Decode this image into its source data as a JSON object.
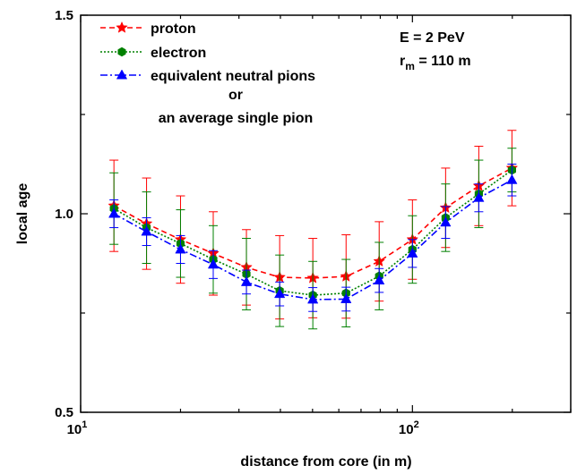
{
  "chart_data": {
    "type": "line",
    "xlabel": "distance from core (in m)",
    "ylabel": "local age",
    "xscale": "log",
    "xlim": [
      10,
      300
    ],
    "ylim": [
      0.5,
      1.5
    ],
    "x_ticks": [
      {
        "value": 10,
        "label": "10",
        "sup": "1"
      },
      {
        "value": 100,
        "label": "10",
        "sup": "2"
      }
    ],
    "y_ticks": [
      {
        "value": 0.5,
        "label": "0.5"
      },
      {
        "value": 1.0,
        "label": "1.0"
      },
      {
        "value": 1.5,
        "label": "1.5"
      }
    ],
    "grid": false,
    "legend_position": "top-left",
    "x": [
      12.6,
      15.8,
      20,
      25.1,
      31.6,
      39.8,
      50.1,
      63.1,
      79.4,
      100,
      125.9,
      158.5,
      199.5
    ],
    "series": [
      {
        "name": "proton",
        "color": "#ff0000",
        "marker": "star",
        "line_style": "dashed",
        "values": [
          1.02,
          0.975,
          0.935,
          0.9,
          0.865,
          0.84,
          0.838,
          0.842,
          0.88,
          0.935,
          1.015,
          1.07,
          1.115
        ],
        "errors": [
          0.115,
          0.115,
          0.11,
          0.105,
          0.095,
          0.105,
          0.1,
          0.105,
          0.1,
          0.1,
          0.1,
          0.1,
          0.095
        ]
      },
      {
        "name": "electron",
        "color": "#008000",
        "marker": "hexagon",
        "line_style": "dotted",
        "values": [
          1.013,
          0.965,
          0.925,
          0.885,
          0.848,
          0.806,
          0.795,
          0.8,
          0.843,
          0.91,
          0.99,
          1.05,
          1.11
        ],
        "errors": [
          0.09,
          0.09,
          0.085,
          0.085,
          0.09,
          0.09,
          0.085,
          0.085,
          0.085,
          0.085,
          0.085,
          0.085,
          0.055
        ]
      },
      {
        "name": "equivalent neutral pions",
        "color": "#0000ff",
        "marker": "triangle",
        "line_style": "dash-dot",
        "values": [
          1.0,
          0.955,
          0.91,
          0.872,
          0.828,
          0.798,
          0.784,
          0.785,
          0.832,
          0.9,
          0.978,
          1.04,
          1.085
        ],
        "errors": [
          0.035,
          0.035,
          0.035,
          0.035,
          0.03,
          0.03,
          0.03,
          0.03,
          0.03,
          0.035,
          0.04,
          0.035,
          0.04
        ]
      }
    ],
    "legend_extra_lines": [
      "or",
      "an average single pion"
    ],
    "annotations": [
      {
        "text": "E = 2 PeV"
      },
      {
        "text_prefix": "r",
        "subscript": "m",
        "text_suffix": " = 110 m"
      }
    ]
  }
}
